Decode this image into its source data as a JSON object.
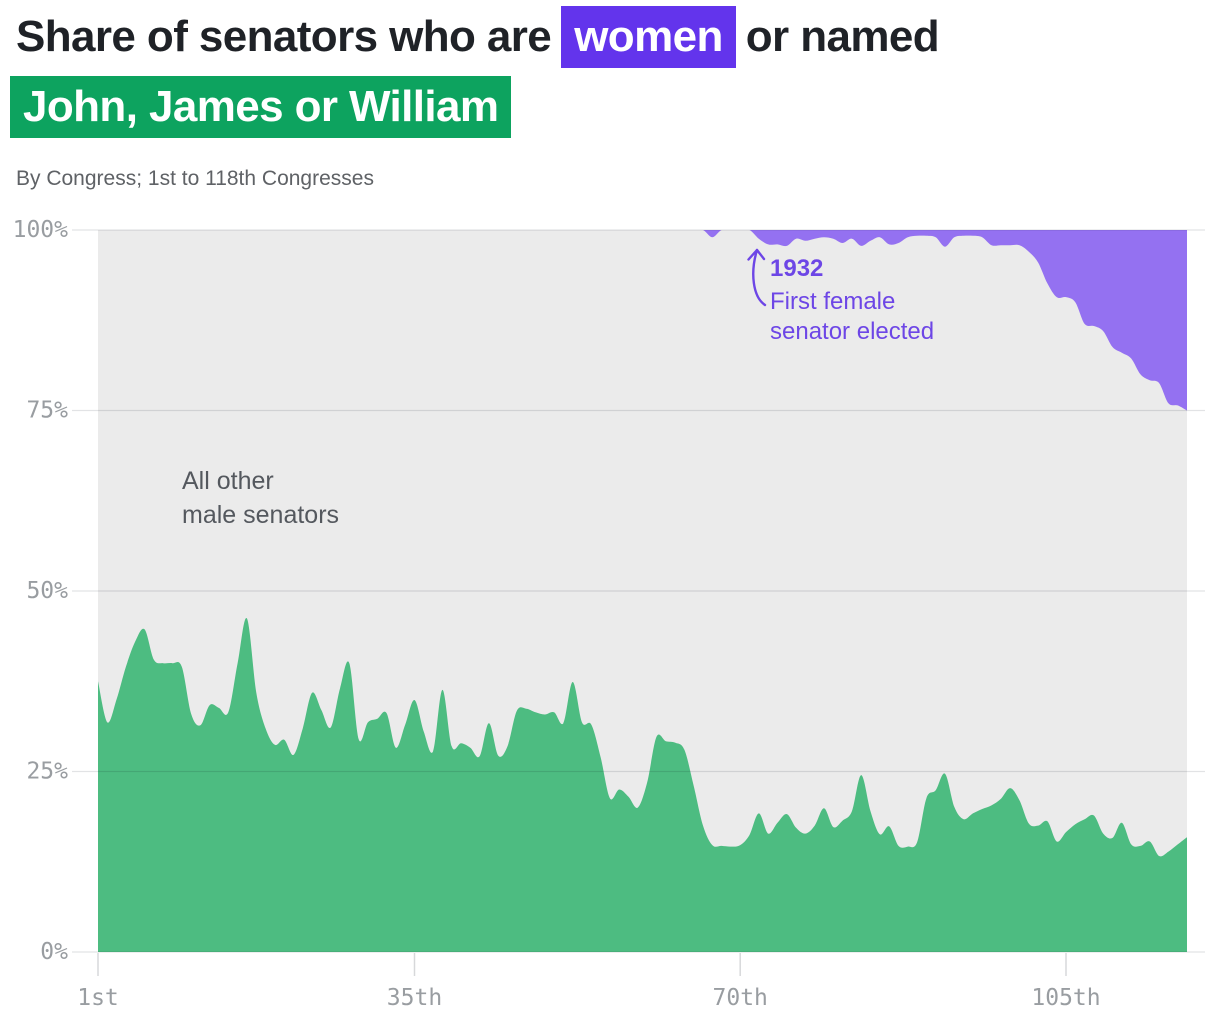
{
  "title": {
    "part1": "Share of senators who are",
    "highlight_women": "women",
    "part2": "or named",
    "highlight_names": "John, James or William"
  },
  "subtitle": "By Congress; 1st to 118th Congresses",
  "area_label": {
    "line1": "All other",
    "line2": "male senators"
  },
  "annotation": {
    "year": "1932",
    "line1": "First female",
    "line2": "senator elected"
  },
  "colors": {
    "name_area_green": "#4dbc81",
    "women_area_purple": "#9471f1",
    "highlight_purple": "#6334ec",
    "highlight_green": "#0da35f",
    "annotation_purple": "#6d46e6",
    "plot_background": "#ebebeb",
    "gridline": "#e2e3e5",
    "tick": "#d7d8da",
    "axis_label": "#999da1"
  },
  "chart_data": {
    "type": "area",
    "stacked": true,
    "title": "Share of senators who are women or named John, James or William",
    "xlabel": "",
    "ylabel": "",
    "ylim": [
      0,
      100
    ],
    "grid": true,
    "congress_range": [
      1,
      118
    ],
    "x_tick_congresses": [
      1,
      35,
      70,
      105
    ],
    "x_tick_labels": [
      "1st",
      "35th",
      "70th",
      "105th"
    ],
    "y_tick_values": [
      0,
      25,
      50,
      75,
      100
    ],
    "y_tick_labels": [
      "0%",
      "25%",
      "50%",
      "75%",
      "100%"
    ],
    "series": [
      {
        "name": "John, James or William",
        "color": "#4dbc81",
        "values": [
          37.5,
          31.8,
          35,
          39.5,
          43,
          44.7,
          40.5,
          40,
          40,
          39.5,
          33,
          31.4,
          34.2,
          33.8,
          33.2,
          40,
          46.2,
          36,
          31,
          28.7,
          29.4,
          27.3,
          31,
          35.9,
          33.5,
          31.1,
          36.5,
          40,
          29.5,
          31.8,
          32.3,
          33.1,
          28.3,
          31.5,
          34.9,
          30.5,
          27.8,
          36.3,
          28.5,
          28.9,
          28.3,
          27.1,
          31.7,
          27.2,
          28.5,
          33.4,
          33.7,
          33.2,
          32.9,
          33.2,
          31.7,
          37.4,
          31.8,
          31.5,
          27,
          21.3,
          22.5,
          21.5,
          20,
          23.5,
          29.8,
          29.2,
          29,
          28,
          23,
          17.5,
          14.8,
          14.7,
          14.6,
          14.8,
          16.2,
          19.2,
          16.4,
          17.9,
          19.1,
          17.2,
          16.4,
          17.5,
          19.9,
          17.3,
          18.2,
          19.5,
          24.5,
          19.5,
          16.3,
          17.4,
          14.7,
          14.6,
          15.2,
          21.3,
          22.4,
          24.7,
          20.1,
          18.4,
          19.2,
          19.8,
          20.3,
          21.2,
          22.7,
          21,
          17.8,
          17.5,
          18.1,
          15.3,
          16.6,
          17.7,
          18.4,
          18.9,
          16.4,
          15.8,
          17.9,
          14.9,
          14.7,
          15.3,
          13.3,
          13.9,
          14.9,
          15.9
        ]
      },
      {
        "name": "All other male senators",
        "color": "#ebebeb",
        "remainder": true,
        "values": null
      },
      {
        "name": "Women",
        "color": "#9471f1",
        "values": [
          0,
          0,
          0,
          0,
          0,
          0,
          0,
          0,
          0,
          0,
          0,
          0,
          0,
          0,
          0,
          0,
          0,
          0,
          0,
          0,
          0,
          0,
          0,
          0,
          0,
          0,
          0,
          0,
          0,
          0,
          0,
          0,
          0,
          0,
          0,
          0,
          0,
          0,
          0,
          0,
          0,
          0,
          0,
          0,
          0,
          0,
          0,
          0,
          0,
          0,
          0,
          0,
          0,
          0,
          0,
          0,
          0,
          0,
          0,
          0,
          0,
          0,
          0,
          0,
          0,
          0,
          1,
          0,
          0,
          0,
          0,
          1.2,
          2,
          2,
          2.2,
          1.2,
          1.5,
          1.2,
          1,
          1.2,
          1.8,
          1.2,
          2.2,
          1.5,
          1,
          2,
          1.8,
          1,
          0.8,
          0.8,
          1,
          2.3,
          1,
          0.8,
          0.8,
          1,
          2.1,
          2.1,
          2.1,
          2.1,
          3,
          4.5,
          7.4,
          9.3,
          9.3,
          10,
          13,
          13.3,
          14,
          16.2,
          17,
          17.8,
          20,
          20.8,
          21.2,
          24,
          24.3,
          25
        ]
      }
    ]
  }
}
